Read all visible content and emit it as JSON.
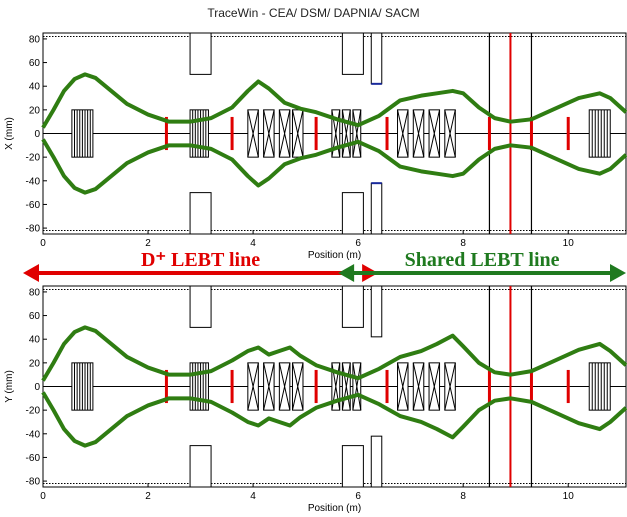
{
  "page_title": "TraceWin - CEA/ DSM/ DAPNIA/ SACM",
  "colors": {
    "envelope": "#2f7d12",
    "aperture": "#000000",
    "element_fill": "#ffffff",
    "steerer": "#e00000",
    "magnet_tip": "#1a2a9c",
    "dplus_annotation": "#e00000",
    "shared_annotation": "#1f7a1f"
  },
  "annotations": {
    "dplus": {
      "text": "D⁺ LEBT line",
      "from_x": 0,
      "to_x": 6
    },
    "shared": {
      "text": "Shared LEBT line",
      "from_x": 6,
      "to_x": 11.1
    }
  },
  "chart_data": [
    {
      "type": "line",
      "name": "x-envelope",
      "xlabel": "Position (m)",
      "ylabel": "X (mm)",
      "xlim": [
        0,
        11.1
      ],
      "ylim": [
        -85,
        85
      ],
      "x_ticks": [
        0,
        2,
        4,
        6,
        8,
        10
      ],
      "y_ticks": [
        80,
        60,
        40,
        20,
        0,
        -20,
        -40,
        -60,
        -80
      ],
      "envelope": {
        "x": [
          0,
          0.2,
          0.4,
          0.6,
          0.8,
          1.0,
          1.3,
          1.6,
          2.0,
          2.4,
          2.8,
          3.2,
          3.6,
          3.9,
          4.1,
          4.3,
          4.6,
          4.9,
          5.2,
          5.6,
          6.0,
          6.4,
          6.8,
          7.2,
          7.5,
          7.8,
          8.0,
          8.3,
          8.6,
          8.9,
          9.3,
          9.7,
          10.2,
          10.6,
          10.8,
          11.1
        ],
        "upper": [
          5,
          20,
          36,
          46,
          50,
          47,
          36,
          25,
          16,
          10,
          10,
          13,
          22,
          36,
          44,
          38,
          26,
          21,
          18,
          12,
          7,
          15,
          28,
          32,
          34,
          36,
          34,
          22,
          13,
          10,
          12,
          20,
          30,
          34,
          30,
          18
        ],
        "lower": [
          -5,
          -20,
          -36,
          -46,
          -50,
          -47,
          -36,
          -25,
          -16,
          -10,
          -10,
          -13,
          -22,
          -36,
          -44,
          -38,
          -26,
          -21,
          -18,
          -12,
          -7,
          -15,
          -28,
          -32,
          -34,
          -36,
          -34,
          -22,
          -13,
          -10,
          -12,
          -20,
          -30,
          -34,
          -30,
          -18
        ]
      }
    },
    {
      "type": "line",
      "name": "y-envelope",
      "xlabel": "Position (m)",
      "ylabel": "Y (mm)",
      "xlim": [
        0,
        11.1
      ],
      "ylim": [
        -85,
        85
      ],
      "x_ticks": [
        0,
        2,
        4,
        6,
        8,
        10
      ],
      "y_ticks": [
        80,
        60,
        40,
        20,
        0,
        -20,
        -40,
        -60,
        -80
      ],
      "envelope": {
        "x": [
          0,
          0.2,
          0.4,
          0.6,
          0.8,
          1.0,
          1.3,
          1.6,
          2.0,
          2.4,
          2.8,
          3.2,
          3.6,
          3.9,
          4.1,
          4.3,
          4.5,
          4.7,
          4.9,
          5.2,
          5.6,
          6.0,
          6.4,
          6.8,
          7.2,
          7.5,
          7.8,
          8.0,
          8.3,
          8.6,
          8.9,
          9.3,
          9.7,
          10.2,
          10.6,
          10.8,
          11.1
        ],
        "upper": [
          5,
          20,
          36,
          46,
          50,
          47,
          36,
          25,
          16,
          10,
          10,
          13,
          22,
          30,
          33,
          27,
          30,
          33,
          26,
          18,
          12,
          7,
          15,
          25,
          30,
          36,
          43,
          34,
          20,
          12,
          10,
          13,
          21,
          31,
          36,
          30,
          18
        ],
        "lower": [
          -5,
          -20,
          -36,
          -46,
          -50,
          -47,
          -36,
          -25,
          -16,
          -10,
          -10,
          -13,
          -22,
          -30,
          -33,
          -27,
          -30,
          -33,
          -26,
          -18,
          -12,
          -7,
          -15,
          -25,
          -30,
          -36,
          -43,
          -34,
          -20,
          -12,
          -10,
          -13,
          -21,
          -31,
          -36,
          -30,
          -18
        ]
      }
    }
  ]
}
